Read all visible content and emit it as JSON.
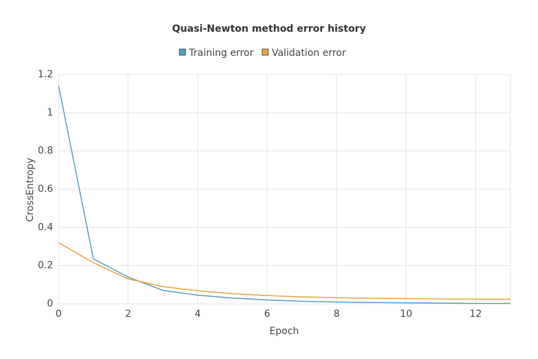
{
  "chart_data": {
    "type": "line",
    "title": "Quasi-Newton method error history",
    "x_label": "Epoch",
    "y_label": "CrossEntropy",
    "x": [
      0,
      1,
      2,
      3,
      4,
      5,
      6,
      7,
      8,
      9,
      10,
      11,
      12,
      13
    ],
    "series": [
      {
        "name": "Training error",
        "color": "#5a9bc1",
        "values": [
          1.14,
          0.235,
          0.14,
          0.07,
          0.045,
          0.03,
          0.02,
          0.013,
          0.009,
          0.007,
          0.005,
          0.003,
          0.002,
          0.002
        ]
      },
      {
        "name": "Validation error",
        "color": "#e8a33b",
        "values": [
          0.32,
          0.215,
          0.13,
          0.09,
          0.068,
          0.053,
          0.043,
          0.036,
          0.032,
          0.029,
          0.027,
          0.025,
          0.024,
          0.024
        ]
      }
    ],
    "xlim": [
      0,
      13
    ],
    "ylim": [
      0,
      1.2
    ],
    "xticks": [
      0,
      2,
      4,
      6,
      8,
      10,
      12
    ],
    "yticks": [
      0,
      0.2,
      0.4,
      0.6,
      0.8,
      1,
      1.2
    ],
    "grid": true,
    "legend": "top"
  }
}
